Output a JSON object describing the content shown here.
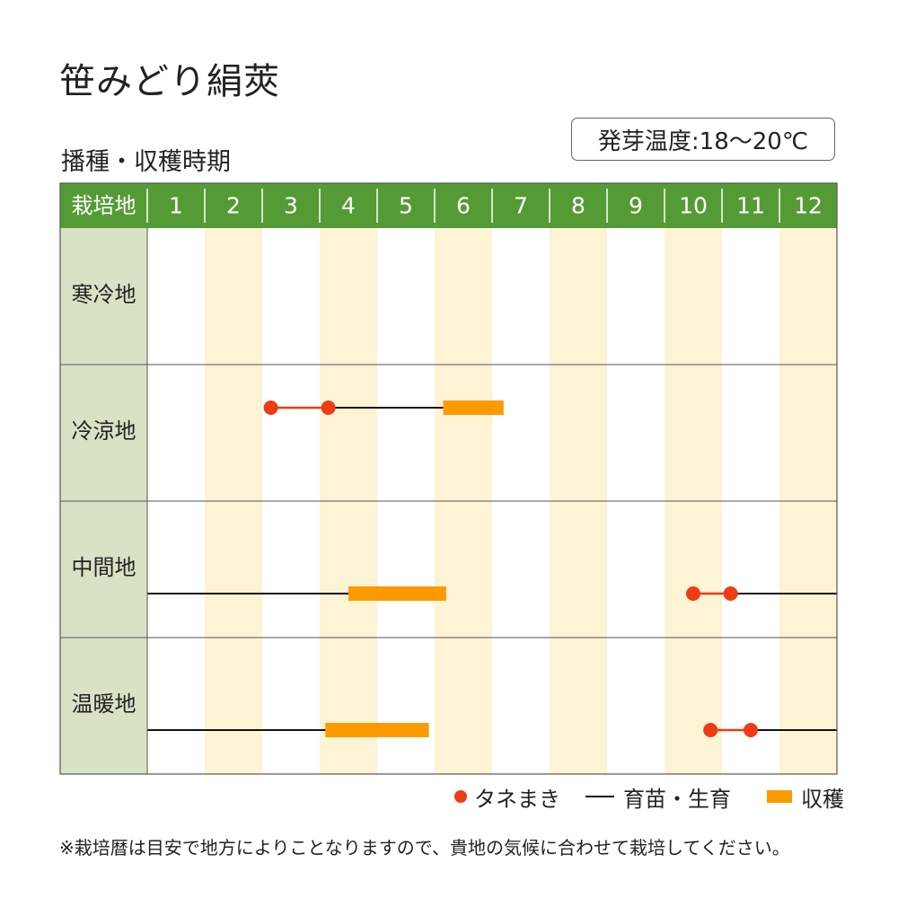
{
  "title": "笹みどり絹莢",
  "subtitle": "播種・収穫時期",
  "temperature": "発芽温度:18～20℃",
  "chart_data": {
    "type": "gantt",
    "header_label": "栽培地",
    "months": [
      "1",
      "2",
      "3",
      "4",
      "5",
      "6",
      "7",
      "8",
      "9",
      "10",
      "11",
      "12"
    ],
    "regions": [
      {
        "name": "寒冷地",
        "sowing_points": [],
        "growing": [],
        "harvest": []
      },
      {
        "name": "冷涼地",
        "sowing_points": [
          3.15,
          4.15
        ],
        "growing": [
          [
            4.15,
            6.15
          ]
        ],
        "harvest": [
          [
            6.15,
            7.2
          ]
        ]
      },
      {
        "name": "中間地",
        "sowing_points": [
          10.5,
          11.15
        ],
        "growing": [
          [
            1.0,
            4.5
          ],
          [
            11.15,
            13.0
          ]
        ],
        "harvest": [
          [
            4.5,
            6.2
          ]
        ]
      },
      {
        "name": "温暖地",
        "sowing_points": [
          10.8,
          11.5
        ],
        "growing": [
          [
            1.0,
            4.1
          ],
          [
            11.5,
            13.0
          ]
        ],
        "harvest": [
          [
            4.1,
            5.9
          ]
        ]
      }
    ],
    "colors": {
      "header": "#559b35",
      "region_cell": "#d8e3c5",
      "stripe": "#fdf3d5",
      "sowing": "#ee3c14",
      "growing": "#111111",
      "harvest": "#ff9900"
    }
  },
  "legend": {
    "sowing": "タネまき",
    "growing": "育苗・生育",
    "harvest": "収穫"
  },
  "footnote": "※栽培暦は目安で地方によりことなりますので、貴地の気候に合わせて栽培してください。"
}
